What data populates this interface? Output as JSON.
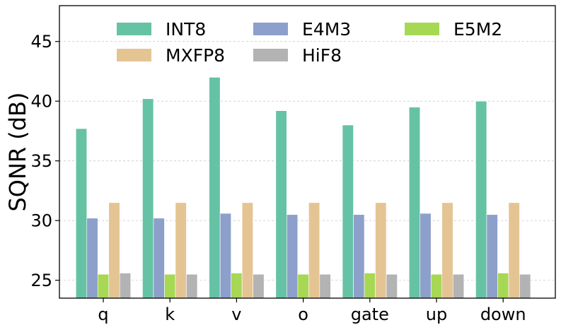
{
  "chart_data": {
    "type": "bar",
    "title": "",
    "xlabel": "",
    "ylabel": "SQNR (dB)",
    "ylim": [
      23.5,
      48
    ],
    "yticks": [
      25,
      30,
      35,
      40,
      45
    ],
    "categories": [
      "q",
      "k",
      "v",
      "o",
      "gate",
      "up",
      "down"
    ],
    "grid": true,
    "legend_position": "top",
    "series": [
      {
        "name": "INT8",
        "color": "#66c2a5",
        "values": [
          37.7,
          40.2,
          42.0,
          39.2,
          38.0,
          39.5,
          40.0
        ]
      },
      {
        "name": "E4M3",
        "color": "#8da0cb",
        "values": [
          30.2,
          30.2,
          30.6,
          30.5,
          30.5,
          30.6,
          30.5
        ]
      },
      {
        "name": "E5M2",
        "color": "#a6d854",
        "values": [
          25.5,
          25.5,
          25.6,
          25.5,
          25.6,
          25.5,
          25.6
        ]
      },
      {
        "name": "MXFP8",
        "color": "#e5c494",
        "values": [
          31.5,
          31.5,
          31.5,
          31.5,
          31.5,
          31.5,
          31.5
        ]
      },
      {
        "name": "HiF8",
        "color": "#b3b3b3",
        "values": [
          25.6,
          25.5,
          25.5,
          25.5,
          25.5,
          25.5,
          25.5
        ]
      }
    ]
  }
}
